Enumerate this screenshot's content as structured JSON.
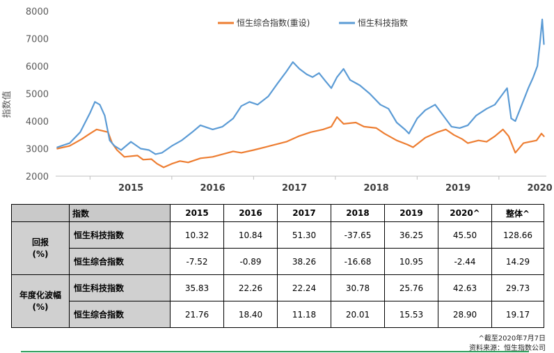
{
  "chart_data": {
    "type": "line",
    "ylabel": "指数值",
    "ylim": [
      2000,
      8000
    ],
    "yticks": [
      2000,
      3000,
      4000,
      5000,
      6000,
      7000,
      8000
    ],
    "xlim": [
      2014.58,
      2020.58
    ],
    "x_tick_labels": [
      "2015",
      "2016",
      "2017",
      "2018",
      "2019",
      "2020"
    ],
    "grid": false,
    "legend_position": "top",
    "series": [
      {
        "name": "恒生综合指数(重设)",
        "color": "#ED7D31",
        "points": [
          [
            2014.6,
            3000
          ],
          [
            2014.75,
            3100
          ],
          [
            2014.9,
            3350
          ],
          [
            2015.0,
            3550
          ],
          [
            2015.08,
            3700
          ],
          [
            2015.15,
            3650
          ],
          [
            2015.22,
            3600
          ],
          [
            2015.27,
            3200
          ],
          [
            2015.33,
            2950
          ],
          [
            2015.42,
            2700
          ],
          [
            2015.58,
            2750
          ],
          [
            2015.65,
            2600
          ],
          [
            2015.75,
            2620
          ],
          [
            2015.82,
            2450
          ],
          [
            2015.9,
            2320
          ],
          [
            2016.0,
            2450
          ],
          [
            2016.1,
            2550
          ],
          [
            2016.2,
            2500
          ],
          [
            2016.35,
            2650
          ],
          [
            2016.5,
            2700
          ],
          [
            2016.6,
            2780
          ],
          [
            2016.75,
            2900
          ],
          [
            2016.85,
            2850
          ],
          [
            2017.0,
            2950
          ],
          [
            2017.2,
            3100
          ],
          [
            2017.4,
            3250
          ],
          [
            2017.55,
            3450
          ],
          [
            2017.7,
            3600
          ],
          [
            2017.85,
            3700
          ],
          [
            2017.95,
            3800
          ],
          [
            2018.02,
            4150
          ],
          [
            2018.1,
            3900
          ],
          [
            2018.25,
            3950
          ],
          [
            2018.35,
            3800
          ],
          [
            2018.5,
            3750
          ],
          [
            2018.6,
            3550
          ],
          [
            2018.75,
            3300
          ],
          [
            2018.88,
            3150
          ],
          [
            2018.95,
            3050
          ],
          [
            2019.1,
            3400
          ],
          [
            2019.25,
            3600
          ],
          [
            2019.35,
            3700
          ],
          [
            2019.45,
            3500
          ],
          [
            2019.55,
            3350
          ],
          [
            2019.62,
            3200
          ],
          [
            2019.75,
            3300
          ],
          [
            2019.85,
            3250
          ],
          [
            2019.95,
            3450
          ],
          [
            2020.05,
            3700
          ],
          [
            2020.12,
            3450
          ],
          [
            2020.2,
            2850
          ],
          [
            2020.3,
            3200
          ],
          [
            2020.38,
            3250
          ],
          [
            2020.46,
            3300
          ],
          [
            2020.52,
            3550
          ],
          [
            2020.55,
            3450
          ]
        ]
      },
      {
        "name": "恒生科技指数",
        "color": "#5B9BD5",
        "points": [
          [
            2014.6,
            3050
          ],
          [
            2014.75,
            3200
          ],
          [
            2014.88,
            3600
          ],
          [
            2015.0,
            4300
          ],
          [
            2015.06,
            4700
          ],
          [
            2015.12,
            4600
          ],
          [
            2015.18,
            4200
          ],
          [
            2015.24,
            3300
          ],
          [
            2015.3,
            3100
          ],
          [
            2015.38,
            2950
          ],
          [
            2015.5,
            3250
          ],
          [
            2015.62,
            3000
          ],
          [
            2015.72,
            2950
          ],
          [
            2015.8,
            2800
          ],
          [
            2015.88,
            2850
          ],
          [
            2016.0,
            3100
          ],
          [
            2016.12,
            3300
          ],
          [
            2016.25,
            3600
          ],
          [
            2016.35,
            3850
          ],
          [
            2016.5,
            3700
          ],
          [
            2016.62,
            3800
          ],
          [
            2016.75,
            4100
          ],
          [
            2016.85,
            4550
          ],
          [
            2016.95,
            4700
          ],
          [
            2017.05,
            4600
          ],
          [
            2017.18,
            4900
          ],
          [
            2017.3,
            5400
          ],
          [
            2017.4,
            5800
          ],
          [
            2017.48,
            6150
          ],
          [
            2017.56,
            5900
          ],
          [
            2017.65,
            5700
          ],
          [
            2017.72,
            5600
          ],
          [
            2017.8,
            5750
          ],
          [
            2017.88,
            5450
          ],
          [
            2017.95,
            5200
          ],
          [
            2018.02,
            5600
          ],
          [
            2018.1,
            5900
          ],
          [
            2018.18,
            5500
          ],
          [
            2018.3,
            5300
          ],
          [
            2018.42,
            5000
          ],
          [
            2018.55,
            4600
          ],
          [
            2018.65,
            4450
          ],
          [
            2018.75,
            3950
          ],
          [
            2018.85,
            3700
          ],
          [
            2018.9,
            3550
          ],
          [
            2019.0,
            4100
          ],
          [
            2019.1,
            4400
          ],
          [
            2019.22,
            4600
          ],
          [
            2019.32,
            4200
          ],
          [
            2019.42,
            3800
          ],
          [
            2019.52,
            3750
          ],
          [
            2019.62,
            3850
          ],
          [
            2019.72,
            4200
          ],
          [
            2019.85,
            4450
          ],
          [
            2019.95,
            4600
          ],
          [
            2020.05,
            5000
          ],
          [
            2020.1,
            5200
          ],
          [
            2020.15,
            4100
          ],
          [
            2020.2,
            4000
          ],
          [
            2020.28,
            4600
          ],
          [
            2020.36,
            5200
          ],
          [
            2020.42,
            5600
          ],
          [
            2020.47,
            6000
          ],
          [
            2020.5,
            6800
          ],
          [
            2020.53,
            7700
          ],
          [
            2020.55,
            6800
          ]
        ]
      }
    ]
  },
  "table": {
    "header_label": "指数",
    "columns": [
      "2015",
      "2016",
      "2017",
      "2018",
      "2019",
      "2020^",
      "整体^"
    ],
    "groups": [
      {
        "label_line1": "回报",
        "label_line2": "(%)",
        "rows": [
          {
            "name": "恒生科技指数",
            "values": [
              "10.32",
              "10.84",
              "51.30",
              "-37.65",
              "36.25",
              "45.50",
              "128.66"
            ]
          },
          {
            "name": "恒生综合指数",
            "values": [
              "-7.52",
              "-0.89",
              "38.26",
              "-16.68",
              "10.95",
              "-2.44",
              "14.29"
            ]
          }
        ]
      },
      {
        "label_line1": "年度化波幅",
        "label_line2": "(%)",
        "rows": [
          {
            "name": "恒生科技指数",
            "values": [
              "35.83",
              "22.26",
              "22.24",
              "30.78",
              "25.76",
              "42.63",
              "29.73"
            ]
          },
          {
            "name": "恒生综合指数",
            "values": [
              "21.76",
              "18.40",
              "11.18",
              "20.01",
              "15.53",
              "28.90",
              "19.17"
            ]
          }
        ]
      }
    ]
  },
  "footnotes": {
    "line1": "^截至2020年7月7日",
    "line2": "资料来源：恒生指数公司"
  }
}
